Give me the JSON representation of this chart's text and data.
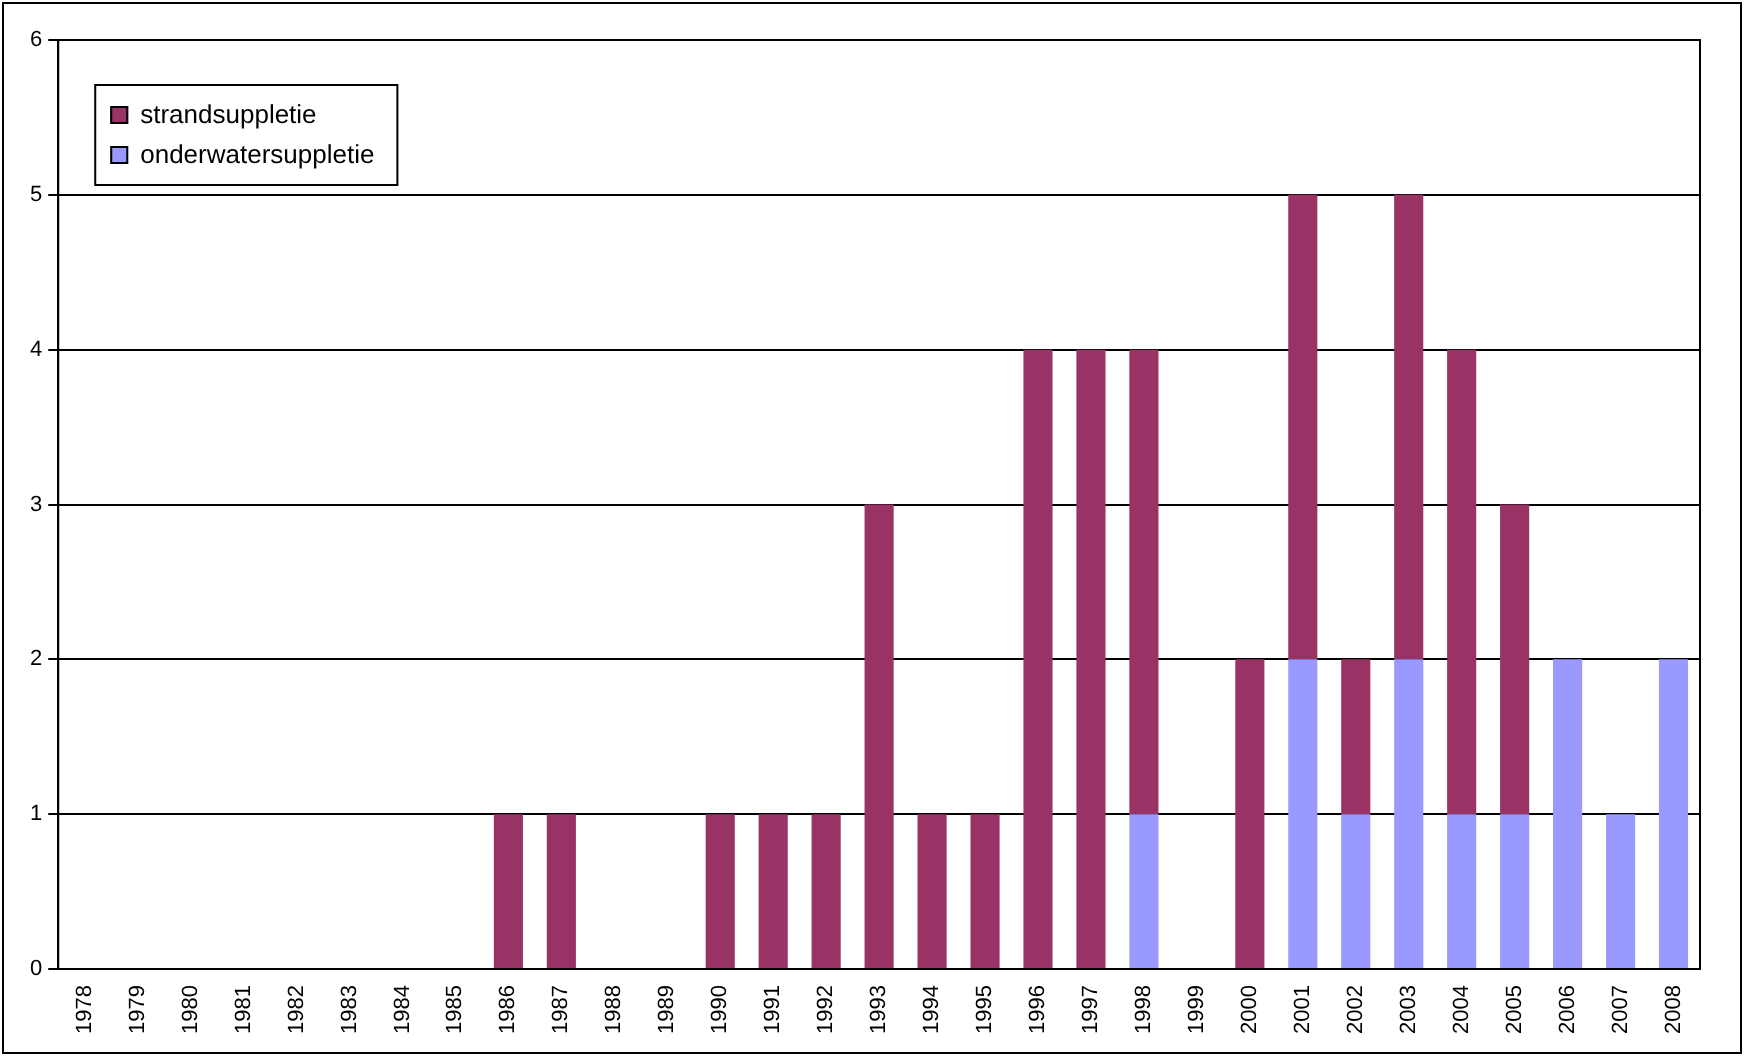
{
  "chart_data": {
    "type": "bar",
    "stacked": true,
    "categories": [
      "1978",
      "1979",
      "1980",
      "1981",
      "1982",
      "1983",
      "1984",
      "1985",
      "1986",
      "1987",
      "1988",
      "1989",
      "1990",
      "1991",
      "1992",
      "1993",
      "1994",
      "1995",
      "1996",
      "1997",
      "1998",
      "1999",
      "2000",
      "2001",
      "2002",
      "2003",
      "2004",
      "2005",
      "2006",
      "2007",
      "2008"
    ],
    "series": [
      {
        "name": "onderwatersuppletie",
        "color": "#9999ff",
        "values": [
          0,
          0,
          0,
          0,
          0,
          0,
          0,
          0,
          0,
          0,
          0,
          0,
          0,
          0,
          0,
          0,
          0,
          0,
          0,
          0,
          1,
          0,
          0,
          2,
          1,
          2,
          1,
          1,
          2,
          1,
          2
        ]
      },
      {
        "name": "strandsuppletie",
        "color": "#993366",
        "values": [
          0,
          0,
          0,
          0,
          0,
          0,
          0,
          0,
          1,
          1,
          0,
          0,
          1,
          1,
          1,
          3,
          1,
          1,
          4,
          4,
          3,
          0,
          2,
          3,
          1,
          3,
          3,
          2,
          0,
          0,
          0
        ]
      }
    ],
    "ylim": [
      0,
      6
    ],
    "yticks": [
      0,
      1,
      2,
      3,
      4,
      5,
      6
    ],
    "grid": "y",
    "legend": "top left"
  }
}
